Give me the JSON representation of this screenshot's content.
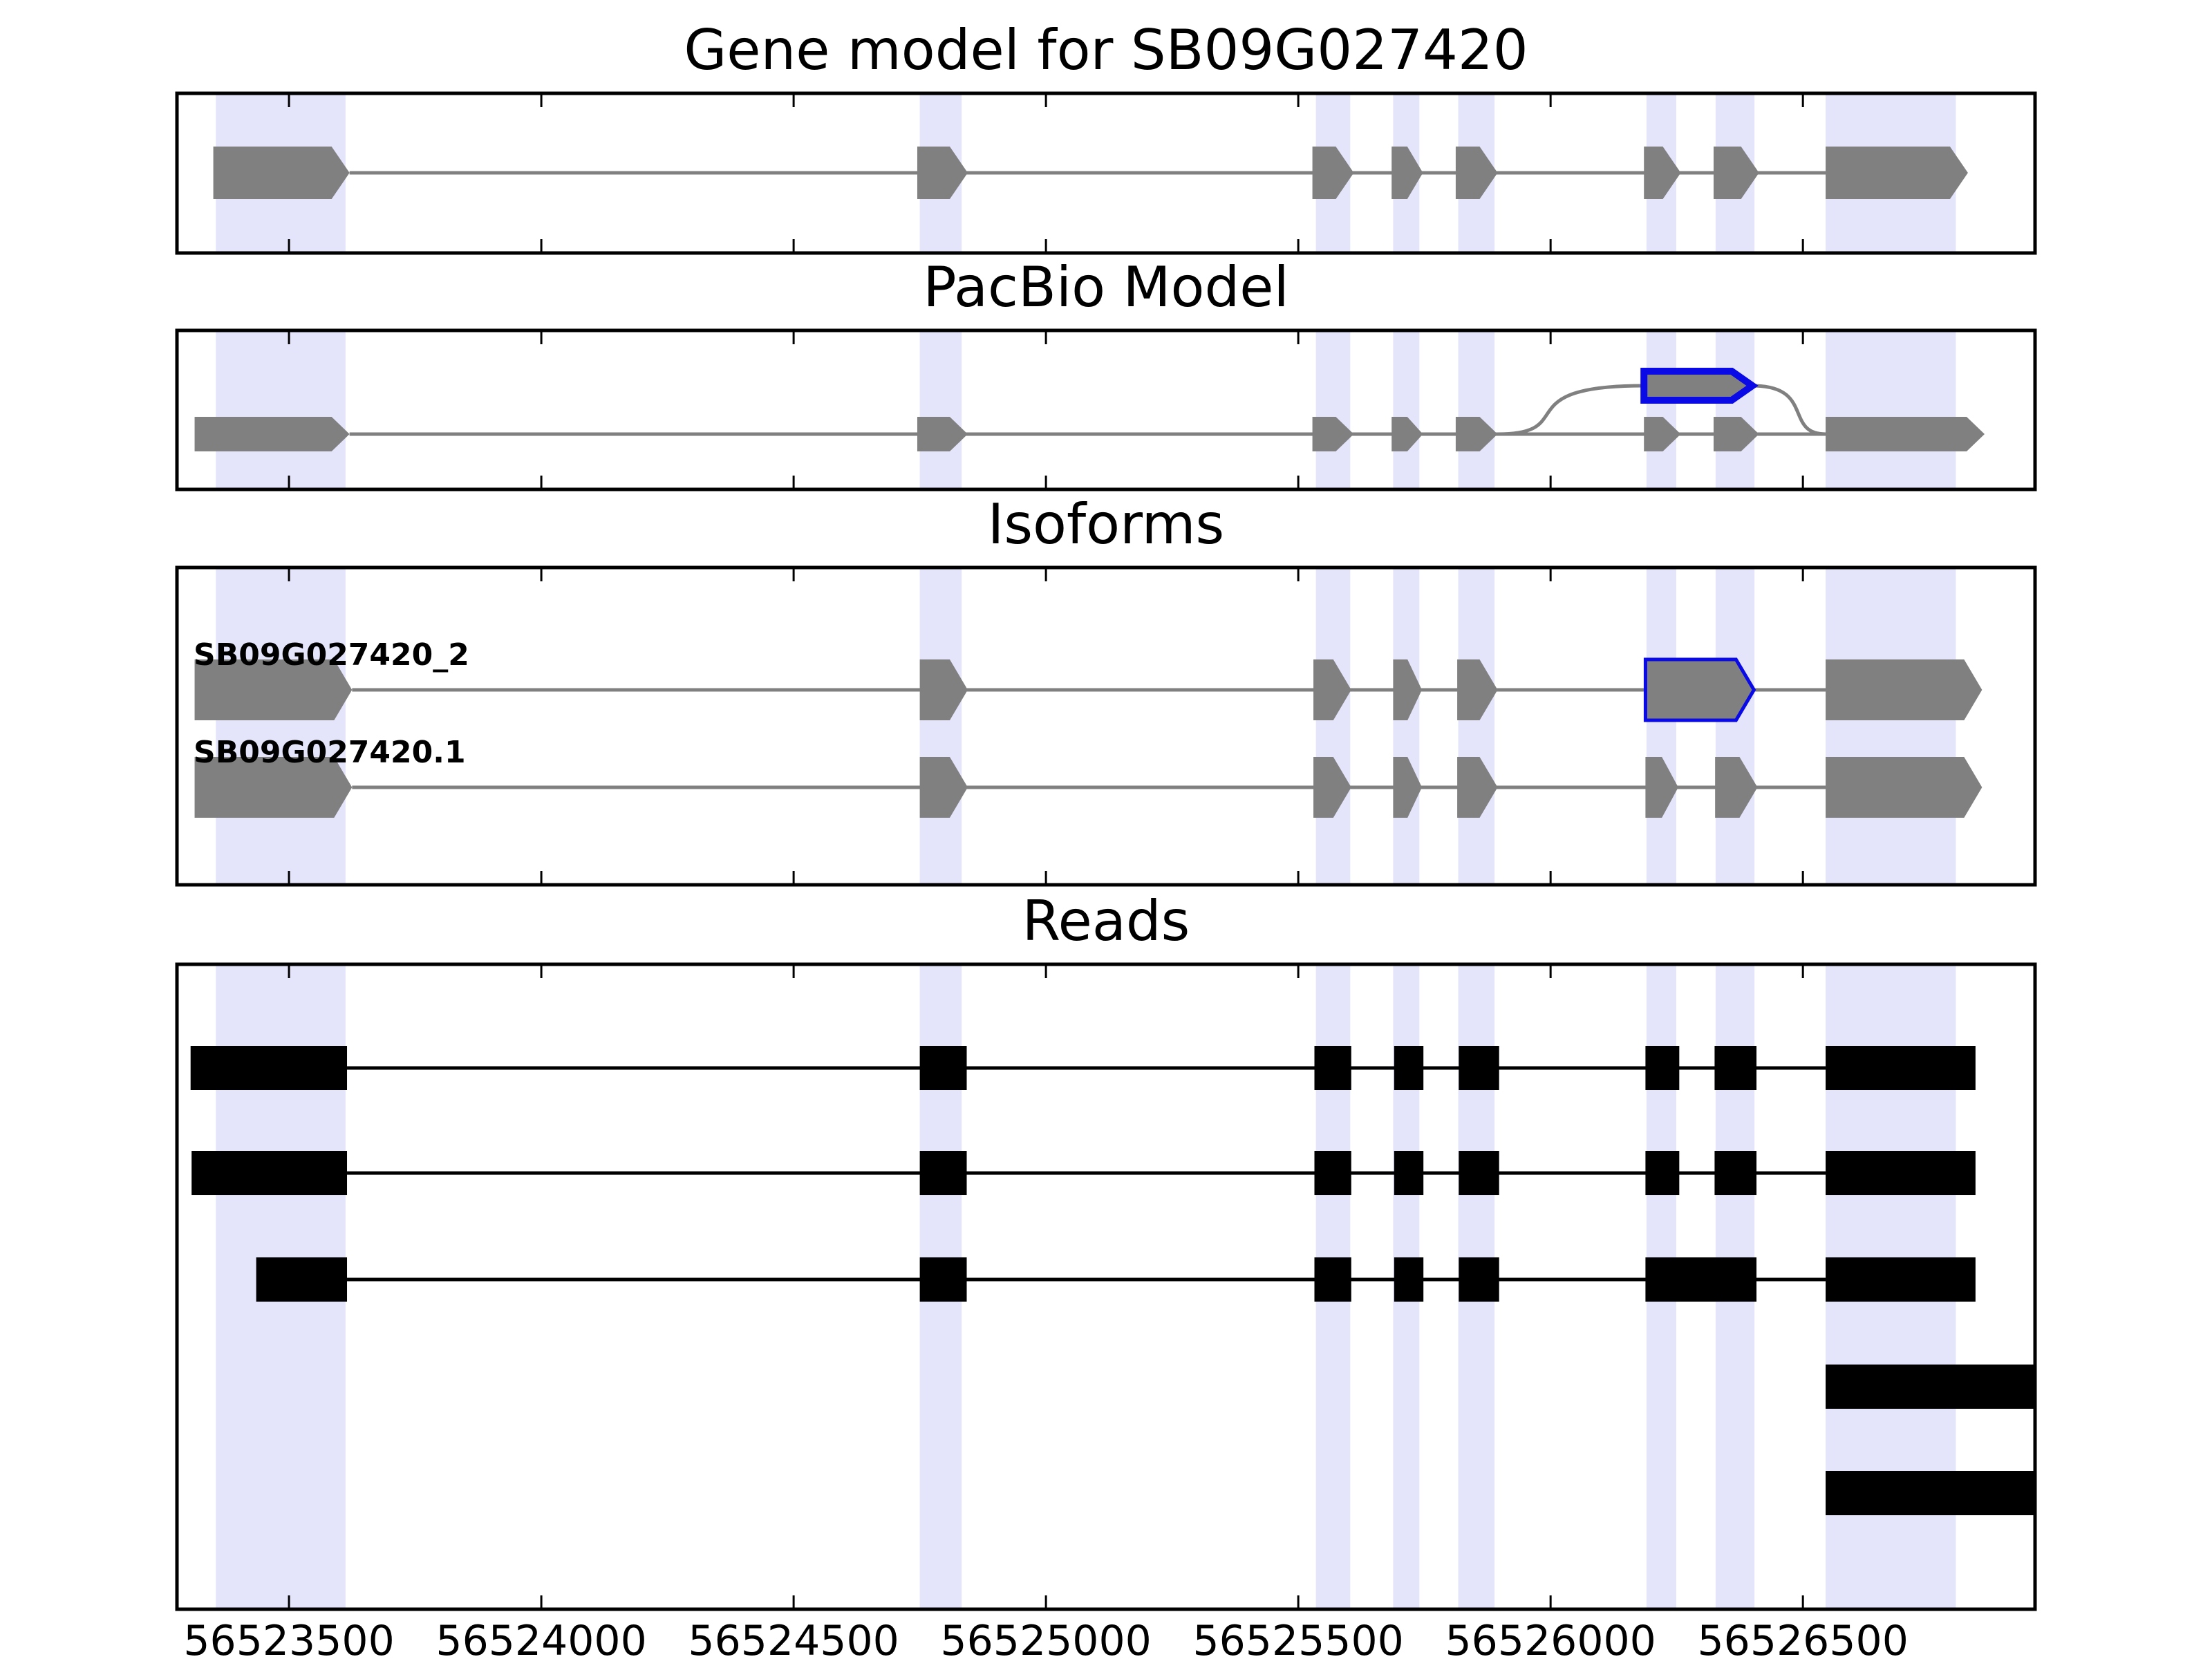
{
  "chart_data": {
    "type": "gene_model",
    "xlim": [
      56523278,
      56526960
    ],
    "x_ticks": [
      56523500,
      56524000,
      56524500,
      56525000,
      56525500,
      56526000,
      56526500
    ],
    "x_tick_labels": [
      "56523500",
      "56524000",
      "56524500",
      "56525000",
      "56525500",
      "56526000",
      "56526500"
    ],
    "highlight_color": "#e4e4fb",
    "exon_color": "#808080",
    "highlight_exon_color": "#0a0ae6",
    "read_color": "#000000",
    "exon_regions": [
      [
        56523355,
        56523612
      ],
      [
        56524750,
        56524833
      ],
      [
        56525535,
        56525603
      ],
      [
        56525688,
        56525740
      ],
      [
        56525817,
        56525889
      ],
      [
        56526190,
        56526249
      ],
      [
        56526327,
        56526404
      ],
      [
        56526545,
        56526803
      ]
    ],
    "panels": [
      {
        "title": "Gene model for SB09G027420",
        "tracks": [
          {
            "exons": [
              [
                56523350,
                56523620
              ],
              [
                56524745,
                56524845
              ],
              [
                56525528,
                56525610
              ],
              [
                56525685,
                56525747
              ],
              [
                56525812,
                56525895
              ],
              [
                56526185,
                56526258
              ],
              [
                56526323,
                56526413
              ],
              [
                56526545,
                56526827
              ]
            ]
          }
        ]
      },
      {
        "title": "PacBio Model",
        "tracks": [
          {
            "exons": [
              [
                56523313,
                56523620
              ],
              [
                56524745,
                56524845
              ],
              [
                56525528,
                56525610
              ],
              [
                56525685,
                56525747
              ],
              [
                56525812,
                56525895
              ],
              [
                56526185,
                56526258
              ],
              [
                56526323,
                56526413
              ],
              [
                56526545,
                56526860
              ]
            ]
          },
          {
            "exons": [
              [
                56526185,
                56526400
              ]
            ],
            "highlight": [
              0
            ]
          }
        ]
      },
      {
        "title": "Isoforms",
        "tracks": [
          {
            "label": "SB09G027420_2",
            "exons": [
              [
                56523313,
                56523625
              ],
              [
                56524750,
                56524845
              ],
              [
                56525530,
                56525605
              ],
              [
                56525688,
                56525745
              ],
              [
                56525815,
                56525895
              ],
              [
                56526188,
                56526403
              ],
              [
                56526545,
                56526855
              ]
            ],
            "highlight": [
              5
            ]
          },
          {
            "label": "SB09G027420.1",
            "exons": [
              [
                56523313,
                56523625
              ],
              [
                56524750,
                56524845
              ],
              [
                56525530,
                56525605
              ],
              [
                56525688,
                56525745
              ],
              [
                56525815,
                56525895
              ],
              [
                56526188,
                56526253
              ],
              [
                56526326,
                56526410
              ],
              [
                56526545,
                56526855
              ]
            ]
          }
        ]
      },
      {
        "title": "Reads",
        "tracks": [
          {
            "exons": [
              [
                56523305,
                56523615
              ],
              [
                56524750,
                56524843
              ],
              [
                56525532,
                56525605
              ],
              [
                56525690,
                56525748
              ],
              [
                56525818,
                56525898
              ],
              [
                56526188,
                56526255
              ],
              [
                56526325,
                56526408
              ],
              [
                56526545,
                56526842
              ]
            ]
          },
          {
            "exons": [
              [
                56523307,
                56523615
              ],
              [
                56524750,
                56524843
              ],
              [
                56525532,
                56525605
              ],
              [
                56525690,
                56525748
              ],
              [
                56525818,
                56525898
              ],
              [
                56526188,
                56526255
              ],
              [
                56526325,
                56526408
              ],
              [
                56526545,
                56526842
              ]
            ]
          },
          {
            "exons": [
              [
                56523435,
                56523615
              ],
              [
                56524750,
                56524843
              ],
              [
                56525532,
                56525605
              ],
              [
                56525690,
                56525748
              ],
              [
                56525818,
                56525898
              ],
              [
                56526188,
                56526408
              ],
              [
                56526545,
                56526842
              ]
            ]
          },
          {
            "exons": [
              [
                56526545,
                56526960
              ]
            ]
          },
          {
            "exons": [
              [
                56526545,
                56526960
              ]
            ]
          }
        ]
      }
    ]
  }
}
